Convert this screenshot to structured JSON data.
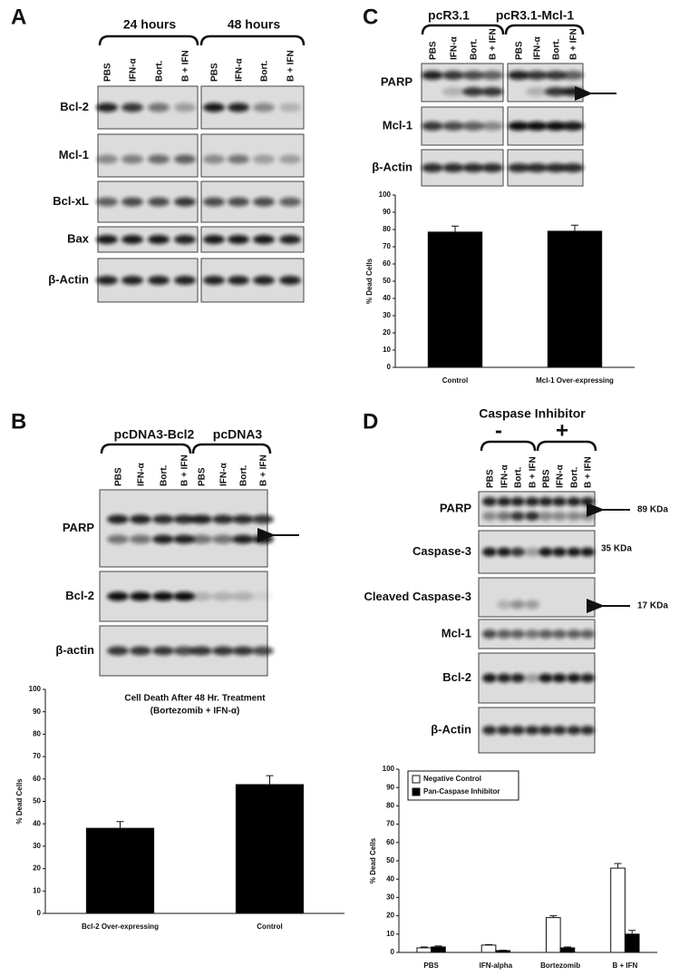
{
  "panels": {
    "A": {
      "letter": "A",
      "groups": [
        "24 hours",
        "48 hours"
      ],
      "lanes": [
        "PBS",
        "IFN-α",
        "Bort.",
        "B + IFN",
        "PBS",
        "IFN-α",
        "Bort.",
        "B + IFN"
      ],
      "rows": [
        "Bcl-2",
        "Mcl-1",
        "Bcl-xL",
        "Bax",
        "β-Actin"
      ]
    },
    "B": {
      "letter": "B",
      "groups": [
        "pcDNA3-Bcl2",
        "pcDNA3"
      ],
      "lanes": [
        "PBS",
        "IFN-α",
        "Bort.",
        "B + IFN",
        "PBS",
        "IFN-α",
        "Bort.",
        "B + IFN"
      ],
      "rows": [
        "PARP",
        "Bcl-2",
        "β-actin"
      ],
      "chart": {
        "type": "bar",
        "title": "Cell Death After 48 Hr. Treatment",
        "subtitle": "(Bortezomib + IFN-α)",
        "y_label": "% Dead Cells",
        "categories": [
          "Bcl-2 Over-expressing",
          "Control"
        ],
        "values": [
          38,
          57.5
        ],
        "errors": [
          3,
          4
        ],
        "color": "#000000",
        "ylim": [
          0,
          100
        ],
        "yticks": [
          0,
          10,
          20,
          30,
          40,
          50,
          60,
          70,
          80,
          90,
          100
        ]
      }
    },
    "C": {
      "letter": "C",
      "groups": [
        "pcR3.1",
        "pcR3.1-Mcl-1"
      ],
      "lanes": [
        "PBS",
        "IFN-α",
        "Bort.",
        "B + IFN",
        "PBS",
        "IFN-α",
        "Bort.",
        "B + IFN"
      ],
      "rows": [
        "PARP",
        "Mcl-1",
        "β-Actin"
      ],
      "chart": {
        "type": "bar",
        "y_label": "% Dead Cells",
        "categories": [
          "Control",
          "Mcl-1 Over-expressing"
        ],
        "values": [
          78.5,
          79
        ],
        "errors": [
          3.5,
          3.5
        ],
        "color": "#000000",
        "ylim": [
          0,
          100
        ],
        "yticks": [
          0,
          10,
          20,
          30,
          40,
          50,
          60,
          70,
          80,
          90,
          100
        ]
      }
    },
    "D": {
      "letter": "D",
      "title": "Caspase Inhibitor",
      "groups": [
        "-",
        "+"
      ],
      "lanes": [
        "PBS",
        "IFN-α",
        "Bort.",
        "B + IFN",
        "PBS",
        "IFN-α",
        "Bort.",
        "B + IFN"
      ],
      "rows": [
        "PARP",
        "Caspase-3",
        "Cleaved Caspase-3",
        "Mcl-1",
        "Bcl-2",
        "β-Actin"
      ],
      "markers": [
        "89 KDa",
        "35 KDa",
        "17 KDa"
      ],
      "chart": {
        "type": "bar",
        "y_label": "% Dead Cells",
        "categories": [
          "PBS",
          "IFN-alpha",
          "Bortezomib",
          "B + IFN"
        ],
        "series": [
          {
            "name": "Negative Control",
            "color": "#ffffff",
            "values": [
              2.5,
              4,
              19,
              46
            ],
            "errors": [
              0.5,
              0.3,
              1,
              2.5
            ]
          },
          {
            "name": "Pan-Caspase Inhibitor",
            "color": "#000000",
            "values": [
              3,
              1,
              2.5,
              10
            ],
            "errors": [
              0.5,
              0.2,
              0.5,
              2
            ]
          }
        ],
        "ylim": [
          0,
          100
        ],
        "yticks": [
          0,
          10,
          20,
          30,
          40,
          50,
          60,
          70,
          80,
          90,
          100
        ],
        "legend": "upper left"
      }
    }
  }
}
